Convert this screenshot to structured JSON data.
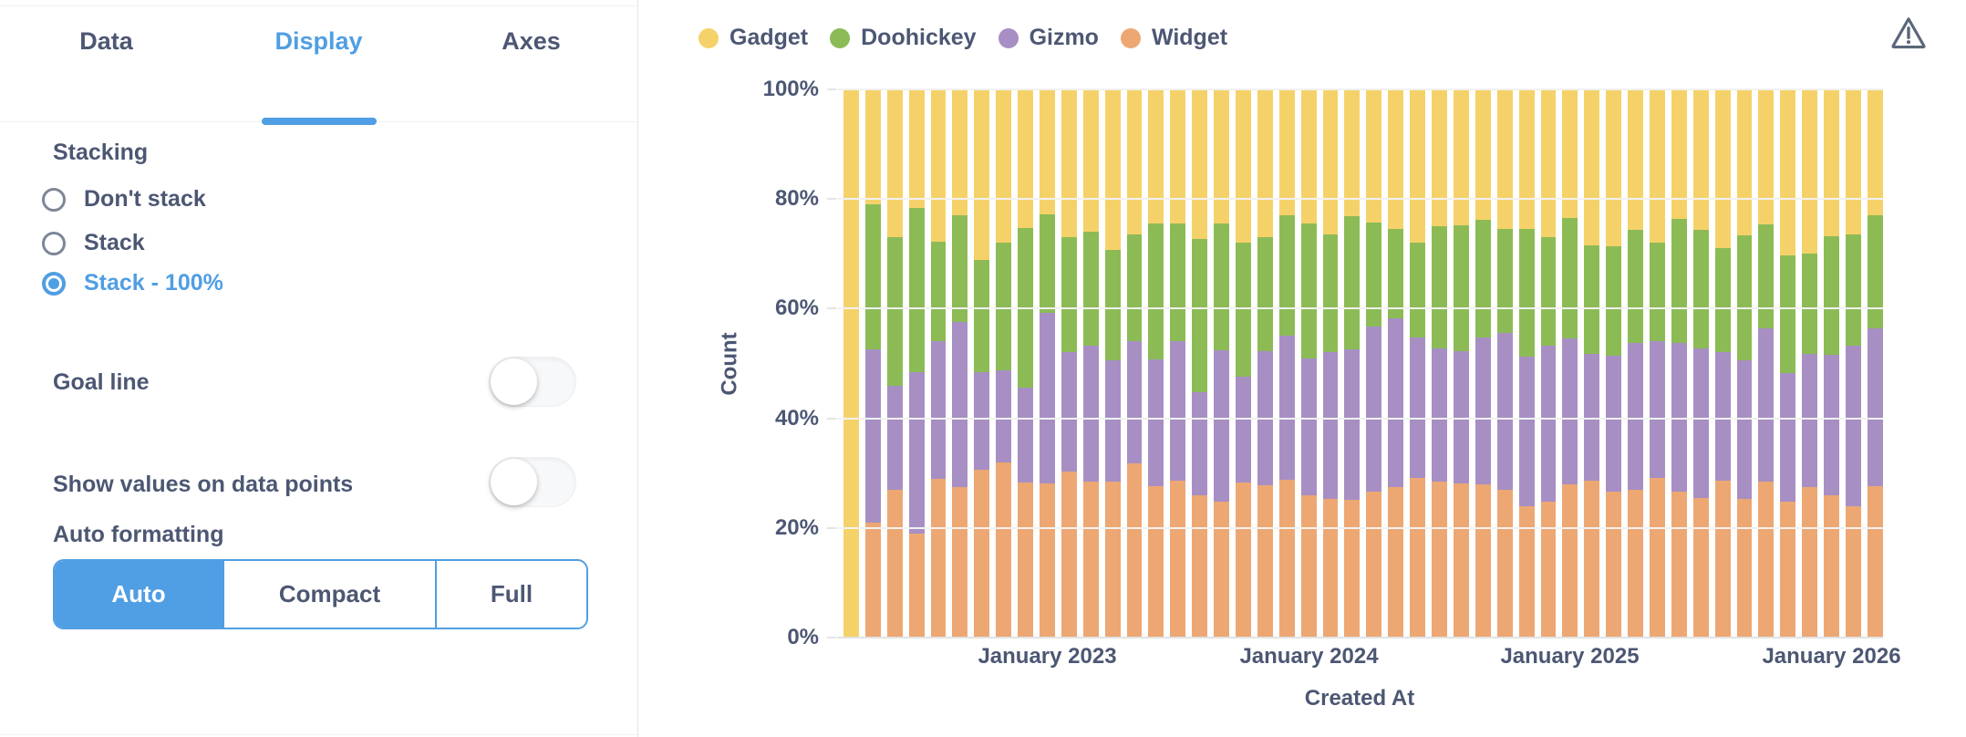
{
  "panel": {
    "tabs": [
      {
        "label": "Data",
        "active": false
      },
      {
        "label": "Display",
        "active": true
      },
      {
        "label": "Axes",
        "active": false
      }
    ],
    "stacking": {
      "title": "Stacking",
      "options": [
        {
          "label": "Don't stack",
          "selected": false
        },
        {
          "label": "Stack",
          "selected": false
        },
        {
          "label": "Stack - 100%",
          "selected": true
        }
      ]
    },
    "toggles": [
      {
        "label": "Goal line",
        "on": false
      },
      {
        "label": "Show values on data points",
        "on": false
      }
    ],
    "auto_formatting": {
      "title": "Auto formatting",
      "options": [
        {
          "label": "Auto",
          "selected": true
        },
        {
          "label": "Compact",
          "selected": false
        },
        {
          "label": "Full",
          "selected": false
        }
      ]
    }
  },
  "colors": {
    "accent": "#509EE3",
    "text": "#4C5773",
    "gadget": "#F5D269",
    "doohickey": "#8CBB56",
    "gizmo": "#A78FC4",
    "widget": "#EDA773"
  },
  "chart_data": {
    "type": "bar",
    "stacking": "100%",
    "legend_position": "top",
    "grid": true,
    "legend": [
      {
        "label": "Gadget",
        "color": "#F5D269"
      },
      {
        "label": "Doohickey",
        "color": "#8CBB56"
      },
      {
        "label": "Gizmo",
        "color": "#A78FC4"
      },
      {
        "label": "Widget",
        "color": "#EDA773"
      }
    ],
    "x_axis": {
      "title": "Created At",
      "ticks": [
        {
          "bar_index": 9,
          "label": "January 2023"
        },
        {
          "bar_index": 21,
          "label": "January 2024"
        },
        {
          "bar_index": 33,
          "label": "January 2025"
        },
        {
          "bar_index": 45,
          "label": "January 2026"
        }
      ],
      "bar_count": 48,
      "granularity": "month"
    },
    "y_axis": {
      "title": "Count",
      "ticks": [
        "100%",
        "80%",
        "60%",
        "40%",
        "20%",
        "0%"
      ],
      "range": [
        0,
        100
      ]
    },
    "series": [
      {
        "name": "Widget",
        "color": "#EDA773",
        "values": [
          0,
          21,
          27,
          19,
          29,
          27.5,
          30.6,
          32,
          28.3,
          28.1,
          30.3,
          28.5,
          28.5,
          31.7,
          27.6,
          28.6,
          25.9,
          24.8,
          28.3,
          27.8,
          28.8,
          25.9,
          25.3,
          25.2,
          26.6,
          27.4,
          29.2,
          28.5,
          28.1,
          27.9,
          26.9,
          23.9,
          24.8,
          27.9,
          28.7,
          26.6,
          26.9,
          29.2,
          26.6,
          25.4,
          28.7,
          25.3,
          28.4,
          24.8,
          27.4,
          26,
          23.9,
          27.6
        ]
      },
      {
        "name": "Gizmo",
        "color": "#A78FC4",
        "values": [
          0,
          31.5,
          19,
          29.5,
          25,
          30.1,
          17.8,
          16.7,
          17.3,
          31.1,
          21.8,
          24.8,
          22.1,
          22.3,
          23.1,
          25.5,
          18.9,
          27.6,
          19.3,
          24.4,
          26.2,
          25.1,
          26.8,
          27.4,
          30.2,
          30.9,
          25.6,
          24.3,
          24.2,
          26.9,
          28.6,
          27.3,
          28.5,
          26.6,
          23,
          24.9,
          26.8,
          24.8,
          27.2,
          27.4,
          23.4,
          25.3,
          28,
          23.5,
          24.3,
          25.6,
          29.4,
          28.8
        ]
      },
      {
        "name": "Doohickey",
        "color": "#8CBB56",
        "values": [
          0,
          26.5,
          27,
          29.8,
          18.3,
          19.5,
          20.5,
          23.3,
          29.1,
          18,
          21,
          20.8,
          20.1,
          19.6,
          24.8,
          21.4,
          28,
          23.1,
          24.5,
          20.9,
          22,
          24.5,
          21.5,
          24.3,
          18.9,
          16.3,
          17.3,
          22.2,
          22.9,
          21.4,
          19,
          23.3,
          19.8,
          22.1,
          19.9,
          19.9,
          20.6,
          18.1,
          22.6,
          21.6,
          18.9,
          22.7,
          18.9,
          21.4,
          18.3,
          21.7,
          20.3,
          20.7
        ]
      },
      {
        "name": "Gadget",
        "color": "#F5D269",
        "values": [
          100,
          21,
          27,
          21.7,
          27.7,
          22.9,
          31.1,
          28,
          25.3,
          22.8,
          26.9,
          25.9,
          29.3,
          26.4,
          24.5,
          24.5,
          27.2,
          24.5,
          27.9,
          26.9,
          23,
          24.5,
          26.4,
          23.1,
          24.3,
          25.4,
          27.9,
          25,
          24.8,
          23.8,
          25.5,
          25.5,
          26.9,
          23.4,
          28.4,
          28.6,
          25.7,
          27.9,
          23.6,
          25.6,
          29,
          26.7,
          24.7,
          30.3,
          30,
          26.7,
          26.4,
          22.9
        ]
      }
    ]
  }
}
